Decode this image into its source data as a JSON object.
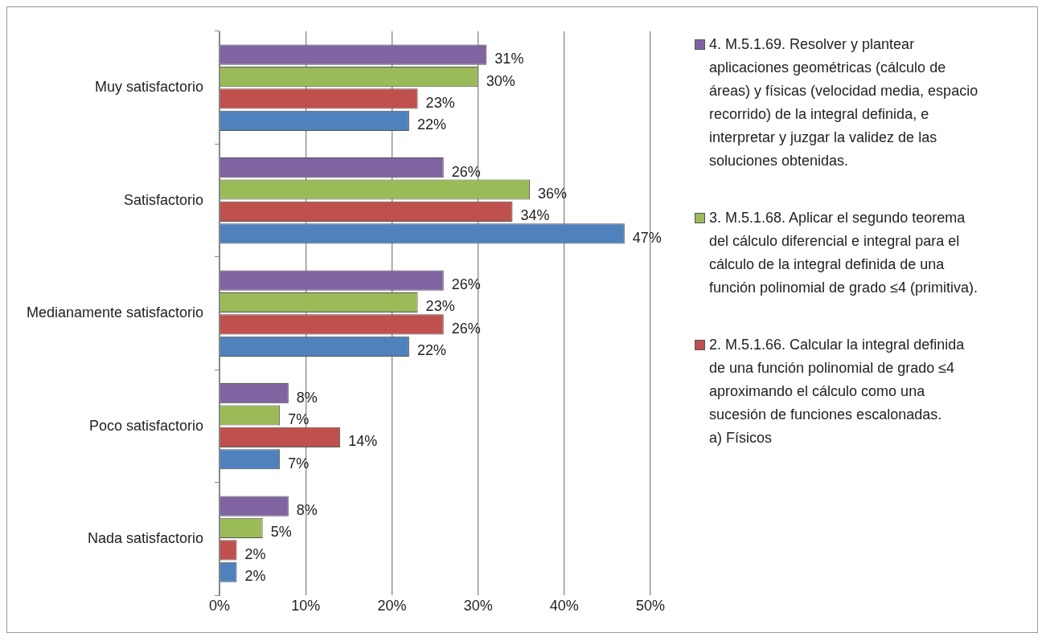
{
  "chart_data": {
    "type": "bar",
    "orientation": "horizontal",
    "categories": [
      "Muy satisfactorio",
      "Satisfactorio",
      "Medianamente satisfactorio",
      "Poco satisfactorio",
      "Nada satisfactorio"
    ],
    "series": [
      {
        "name": "4. M.5.1.69. Resolver y plantear aplicaciones geométricas (cálculo de áreas) y físicas (velocidad media, espacio recorrido) de la integral definida, e interpretar y juzgar la validez de las soluciones obtenidas.",
        "color": "#8064a2",
        "values": [
          31,
          26,
          26,
          8,
          8
        ],
        "value_labels": [
          "31%",
          "26%",
          "26%",
          "8%",
          "8%"
        ]
      },
      {
        "name": "3. M.5.1.68. Aplicar el segundo teorema del cálculo diferencial e integral para el cálculo de la integral definida de una función polinomial de grado ≤4 (primitiva).",
        "color": "#9bbb59",
        "values": [
          30,
          36,
          23,
          7,
          5
        ],
        "value_labels": [
          "30%",
          "36%",
          "23%",
          "7%",
          "5%"
        ]
      },
      {
        "name": "2. M.5.1.66. Calcular la integral definida de una función polinomial de grado ≤4 aproximando el cálculo como una sucesión de funciones escalonadas.\na) Físicos",
        "color": "#c0504d",
        "values": [
          23,
          34,
          26,
          14,
          2
        ],
        "value_labels": [
          "23%",
          "34%",
          "26%",
          "14%",
          "2%"
        ]
      },
      {
        "color": "#4f81bd",
        "values": [
          22,
          47,
          22,
          7,
          2
        ],
        "value_labels": [
          "22%",
          "47%",
          "22%",
          "7%",
          "2%"
        ]
      }
    ],
    "xlim": [
      0,
      50
    ],
    "xticks": [
      {
        "value": 0,
        "label": "0%"
      },
      {
        "value": 10,
        "label": "10%"
      },
      {
        "value": 20,
        "label": "20%"
      },
      {
        "value": 30,
        "label": "30%"
      },
      {
        "value": 40,
        "label": "40%"
      },
      {
        "value": 50,
        "label": "50%"
      }
    ],
    "grid": "x",
    "legend": "right"
  }
}
